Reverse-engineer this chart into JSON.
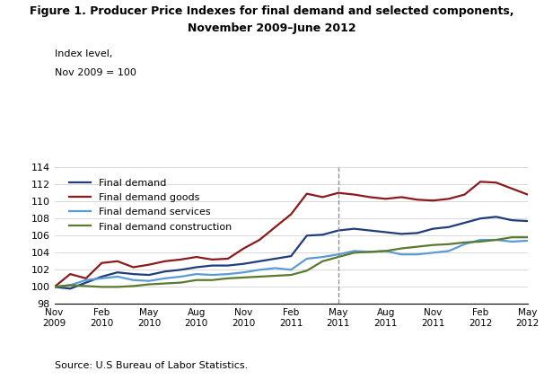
{
  "title_line1": "Figure 1. Producer Price Indexes for final demand and selected components,",
  "title_line2": "November 2009–June 2012",
  "source": "Source: U.S Bureau of Labor Statistics.",
  "ylim": [
    98,
    114
  ],
  "yticks": [
    98,
    100,
    102,
    104,
    106,
    108,
    110,
    112,
    114
  ],
  "xlim": [
    0,
    30
  ],
  "dashed_line_x": 18,
  "x_tick_positions": [
    0,
    3,
    6,
    9,
    12,
    15,
    18,
    21,
    24,
    27,
    30
  ],
  "x_tick_labels": [
    "Nov\n2009",
    "Feb\n2010",
    "May\n2010",
    "Aug\n2010",
    "Nov\n2010",
    "Feb\n2011",
    "May\n2011",
    "Aug\n2011",
    "Nov\n2011",
    "Feb\n2012",
    "May\n2012"
  ],
  "series": {
    "final_demand": {
      "label": "Final demand",
      "color": "#1f3d7a",
      "linewidth": 1.6,
      "data": [
        100.0,
        99.8,
        100.5,
        101.2,
        101.7,
        101.5,
        101.4,
        101.8,
        102.0,
        102.3,
        102.5,
        102.5,
        102.7,
        103.0,
        103.3,
        103.6,
        106.0,
        106.1,
        106.6,
        106.8,
        106.6,
        106.4,
        106.2,
        106.3,
        106.8,
        107.0,
        107.5,
        108.0,
        108.2,
        107.8,
        107.7
      ]
    },
    "final_demand_goods": {
      "label": "Final demand goods",
      "color": "#8b1a1a",
      "linewidth": 1.6,
      "data": [
        100.0,
        101.5,
        101.0,
        102.8,
        103.0,
        102.3,
        102.6,
        103.0,
        103.2,
        103.5,
        103.2,
        103.3,
        104.5,
        105.5,
        107.0,
        108.5,
        110.9,
        110.5,
        111.0,
        110.8,
        110.5,
        110.3,
        110.5,
        110.2,
        110.1,
        110.3,
        110.8,
        112.3,
        112.2,
        111.5,
        110.8
      ]
    },
    "final_demand_services": {
      "label": "Final demand services",
      "color": "#5b9bd5",
      "linewidth": 1.6,
      "data": [
        100.0,
        100.2,
        100.8,
        101.0,
        101.2,
        100.8,
        100.7,
        101.0,
        101.2,
        101.5,
        101.4,
        101.5,
        101.7,
        102.0,
        102.2,
        102.0,
        103.3,
        103.5,
        103.8,
        104.2,
        104.1,
        104.2,
        103.8,
        103.8,
        104.0,
        104.2,
        105.0,
        105.5,
        105.5,
        105.3,
        105.4
      ]
    },
    "final_demand_construction": {
      "label": "Final demand construction",
      "color": "#5a7a2e",
      "linewidth": 1.6,
      "data": [
        100.0,
        100.2,
        100.1,
        100.0,
        100.0,
        100.1,
        100.3,
        100.4,
        100.5,
        100.8,
        100.8,
        101.0,
        101.1,
        101.2,
        101.3,
        101.4,
        101.9,
        103.0,
        103.5,
        104.0,
        104.1,
        104.2,
        104.5,
        104.7,
        104.9,
        105.0,
        105.2,
        105.3,
        105.5,
        105.8,
        105.8
      ]
    }
  }
}
